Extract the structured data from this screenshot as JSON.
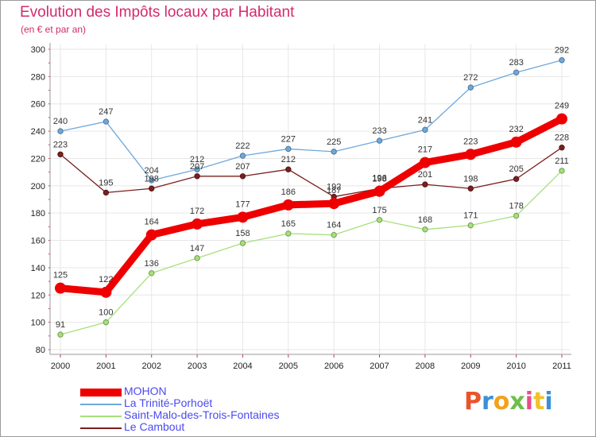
{
  "title": "Evolution des Impôts locaux par Habitant",
  "subtitle": "(en € et par an)",
  "logo": {
    "text": "Proxiti",
    "colors": [
      "#e8542c",
      "#3b8fd6",
      "#f3a21a",
      "#6cc04a",
      "#e84d8a",
      "#f0c22a",
      "#3b8fd6"
    ]
  },
  "chart_data": {
    "type": "line",
    "title": "Evolution des Impôts locaux par Habitant",
    "ylabel": "(en € et par an)",
    "xlabel": "",
    "ylim": [
      80,
      300
    ],
    "yticks": [
      80,
      100,
      120,
      140,
      160,
      180,
      200,
      220,
      240,
      260,
      280,
      300
    ],
    "categories": [
      "2000",
      "2001",
      "2002",
      "2003",
      "2004",
      "2005",
      "2006",
      "2007",
      "2008",
      "2009",
      "2010",
      "2011"
    ],
    "grid": true,
    "legend_position": "bottom-left",
    "series": [
      {
        "name": "MOHON",
        "color": "#ee0000",
        "bold": true,
        "values": [
          125,
          122,
          164,
          172,
          177,
          186,
          187,
          196,
          217,
          223,
          232,
          249
        ]
      },
      {
        "name": "La Trinité-Porhoët",
        "color": "#6fa8dc",
        "bold": false,
        "values": [
          240,
          247,
          204,
          212,
          222,
          227,
          225,
          233,
          241,
          272,
          283,
          292
        ]
      },
      {
        "name": "Saint-Malo-des-Trois-Fontaines",
        "color": "#a6e07a",
        "bold": false,
        "values": [
          91,
          100,
          136,
          147,
          158,
          165,
          164,
          175,
          168,
          171,
          178,
          211
        ]
      },
      {
        "name": "Le Cambout",
        "color": "#7a1f1f",
        "bold": false,
        "values": [
          223,
          195,
          198,
          207,
          207,
          212,
          192,
          198,
          201,
          198,
          205,
          228
        ]
      }
    ]
  }
}
